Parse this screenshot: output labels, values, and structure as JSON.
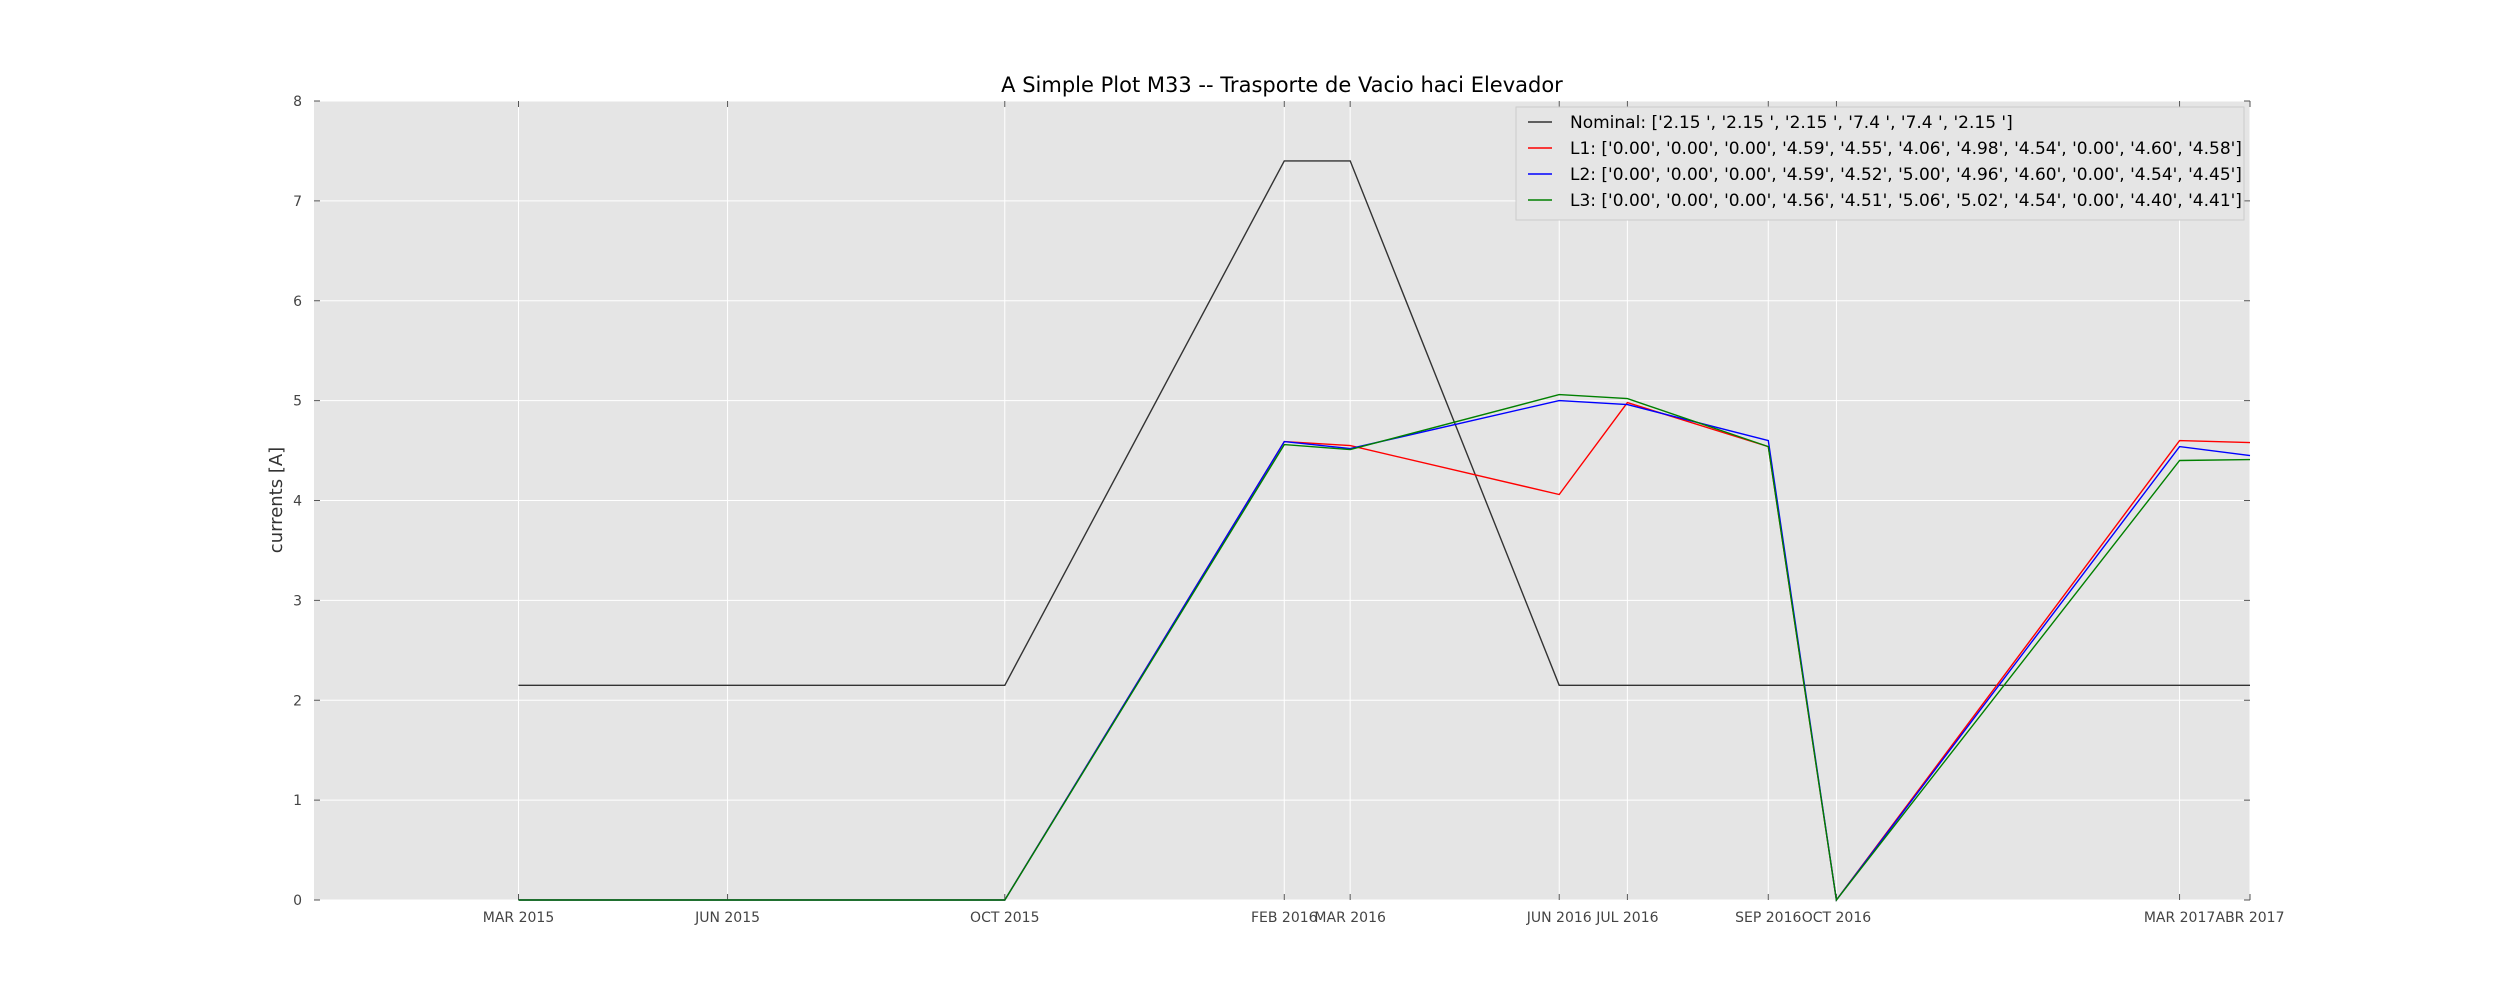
{
  "chart_data": {
    "type": "line",
    "title": "A Simple Plot M33 -- Trasporte de Vacio haci Elevador",
    "xlabel": "",
    "ylabel": "currents [A]",
    "ylim": [
      0,
      8
    ],
    "yticks": [
      "0",
      "1",
      "2",
      "3",
      "4",
      "5",
      "6",
      "7",
      "8"
    ],
    "xlim": [
      "2014-12-01",
      "2017-04-01"
    ],
    "x_ticks": [
      {
        "date": "2015-03-01",
        "label": "MAR 2015"
      },
      {
        "date": "2015-06-01",
        "label": "JUN 2015"
      },
      {
        "date": "2015-10-01",
        "label": "OCT 2015"
      },
      {
        "date": "2016-02-01",
        "label": "FEB 2016"
      },
      {
        "date": "2016-03-01",
        "label": "MAR 2016"
      },
      {
        "date": "2016-06-01",
        "label": "JUN 2016"
      },
      {
        "date": "2016-07-01",
        "label": "JUL 2016"
      },
      {
        "date": "2016-09-01",
        "label": "SEP 2016"
      },
      {
        "date": "2016-10-01",
        "label": "OCT 2016"
      },
      {
        "date": "2017-03-01",
        "label": "MAR 2017"
      },
      {
        "date": "2017-04-01",
        "label": "ABR 2017"
      }
    ],
    "grid": true,
    "legend_position": "top-right",
    "background_color": "#e5e5e5",
    "series": [
      {
        "name": "Nominal:  ['2.15 ', '2.15 ', '2.15 ', '7.4 ', '7.4 ', '2.15 ']",
        "color": "#333333",
        "points": [
          {
            "x": "2015-03-01",
            "y": 2.15
          },
          {
            "x": "2015-10-01",
            "y": 2.15
          },
          {
            "x": "2016-02-01",
            "y": 7.4
          },
          {
            "x": "2016-03-01",
            "y": 7.4
          },
          {
            "x": "2016-06-01",
            "y": 2.15
          },
          {
            "x": "2017-04-01",
            "y": 2.15
          }
        ]
      },
      {
        "name": "L1: ['0.00', '0.00', '0.00', '4.59', '4.55', '4.06', '4.98', '4.54', '0.00', '4.60', '4.58']",
        "color": "#ff0000",
        "points": [
          {
            "x": "2015-03-01",
            "y": 0.0
          },
          {
            "x": "2015-06-01",
            "y": 0.0
          },
          {
            "x": "2015-10-01",
            "y": 0.0
          },
          {
            "x": "2016-02-01",
            "y": 4.59
          },
          {
            "x": "2016-03-01",
            "y": 4.55
          },
          {
            "x": "2016-06-01",
            "y": 4.06
          },
          {
            "x": "2016-07-01",
            "y": 4.98
          },
          {
            "x": "2016-09-01",
            "y": 4.54
          },
          {
            "x": "2016-10-01",
            "y": 0.0
          },
          {
            "x": "2017-03-01",
            "y": 4.6
          },
          {
            "x": "2017-04-01",
            "y": 4.58
          }
        ]
      },
      {
        "name": "L2:  ['0.00', '0.00', '0.00', '4.59', '4.52', '5.00', '4.96', '4.60', '0.00', '4.54', '4.45']",
        "color": "#0000ff",
        "points": [
          {
            "x": "2015-03-01",
            "y": 0.0
          },
          {
            "x": "2015-06-01",
            "y": 0.0
          },
          {
            "x": "2015-10-01",
            "y": 0.0
          },
          {
            "x": "2016-02-01",
            "y": 4.59
          },
          {
            "x": "2016-03-01",
            "y": 4.52
          },
          {
            "x": "2016-06-01",
            "y": 5.0
          },
          {
            "x": "2016-07-01",
            "y": 4.96
          },
          {
            "x": "2016-09-01",
            "y": 4.6
          },
          {
            "x": "2016-10-01",
            "y": 0.0
          },
          {
            "x": "2017-03-01",
            "y": 4.54
          },
          {
            "x": "2017-04-01",
            "y": 4.45
          }
        ]
      },
      {
        "name": "L3: ['0.00', '0.00', '0.00', '4.56', '4.51', '5.06', '5.02', '4.54', '0.00', '4.40', '4.41']",
        "color": "#008000",
        "points": [
          {
            "x": "2015-03-01",
            "y": 0.0
          },
          {
            "x": "2015-06-01",
            "y": 0.0
          },
          {
            "x": "2015-10-01",
            "y": 0.0
          },
          {
            "x": "2016-02-01",
            "y": 4.56
          },
          {
            "x": "2016-03-01",
            "y": 4.51
          },
          {
            "x": "2016-06-01",
            "y": 5.06
          },
          {
            "x": "2016-07-01",
            "y": 5.02
          },
          {
            "x": "2016-09-01",
            "y": 4.54
          },
          {
            "x": "2016-10-01",
            "y": 0.0
          },
          {
            "x": "2017-03-01",
            "y": 4.4
          },
          {
            "x": "2017-04-01",
            "y": 4.41
          }
        ]
      }
    ]
  }
}
